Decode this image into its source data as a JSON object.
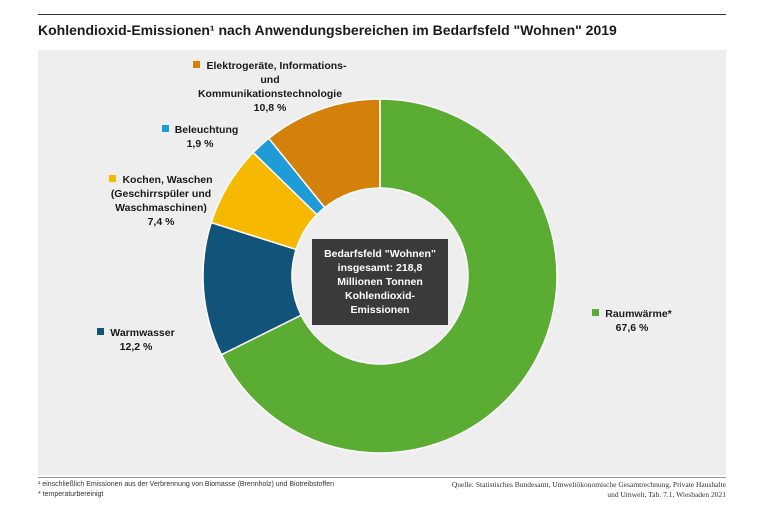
{
  "title": "Kohlendioxid-Emissionen¹ nach Anwendungsbereichen im Bedarfsfeld \"Wohnen\" 2019",
  "center_text": "Bedarfsfeld \"Wohnen\"\ninsgesamt:  218,8\nMillionen Tonnen\nKohlendioxid-\nEmissionen",
  "chart_data": {
    "type": "pie",
    "donut": true,
    "unit": "%",
    "slices": [
      {
        "key": "raumwaerme",
        "label": "Raumwärme*",
        "value": 67.6,
        "value_label": "67,6 %",
        "color": "#5aad32"
      },
      {
        "key": "warmwasser",
        "label": "Warmwasser",
        "value": 12.2,
        "value_label": "12,2 %",
        "color": "#12537a"
      },
      {
        "key": "kochen",
        "label": "Kochen, Waschen\n(Geschirrspüler und\nWaschmaschinen)",
        "value": 7.4,
        "value_label": "7,4 %",
        "color": "#f6b800"
      },
      {
        "key": "beleuchtung",
        "label": "Beleuchtung",
        "value": 1.9,
        "value_label": "1,9 %",
        "color": "#1f9bd7"
      },
      {
        "key": "elektro",
        "label": "Elektrogeräte, Informations-\nund\nKommunikationstechnologie",
        "value": 10.8,
        "value_label": "10,8 %",
        "color": "#d4810b"
      }
    ]
  },
  "footnotes": {
    "note1": "¹ einschließlich Emissionen aus der Verbrennung  von Biomasse (Brennholz) und Biotreibstoffen",
    "note2": "* temperaturbereinigt"
  },
  "source": "Quelle: Statistisches Bundesamt, Umweltökonomische Gesamtrechnung, Private Haushalte und Umwelt, Tab. 7.1, Wiesbaden 2021"
}
